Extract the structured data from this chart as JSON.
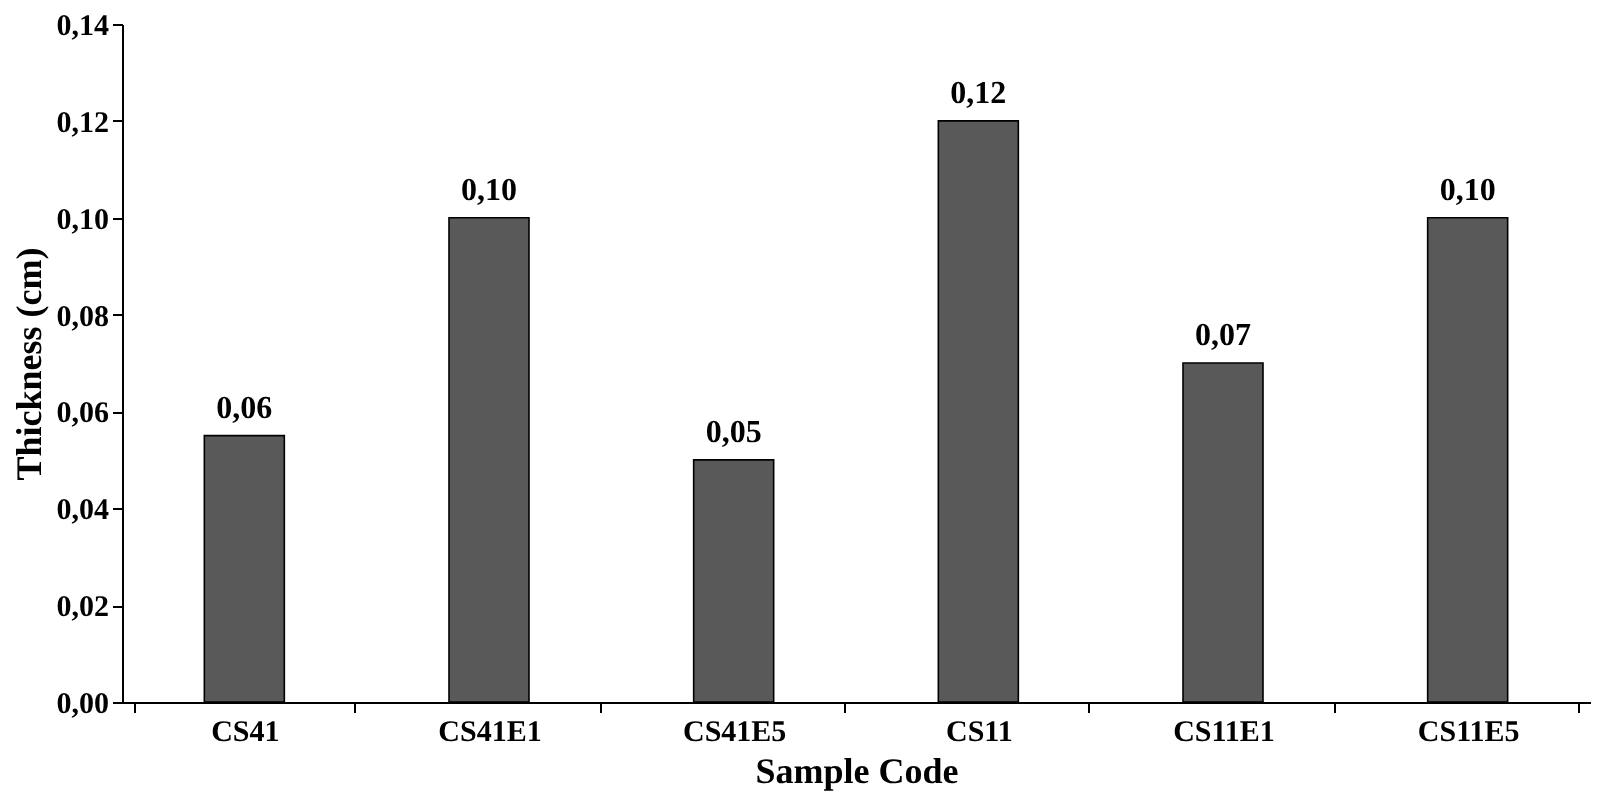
{
  "chart_data": {
    "type": "bar",
    "xlabel": "Sample Code",
    "ylabel": "Thickness (cm)",
    "categories": [
      "CS41",
      "CS41E1",
      "CS41E5",
      "CS11",
      "CS11E1",
      "CS11E5"
    ],
    "values": [
      0.055,
      0.1,
      0.05,
      0.12,
      0.07,
      0.1
    ],
    "value_labels": [
      "0,06",
      "0,10",
      "0,05",
      "0,12",
      "0,07",
      "0,10"
    ],
    "color": "#595959",
    "ylim": [
      0,
      0.14
    ],
    "yticks": [
      {
        "value": 0,
        "label": "0,00"
      },
      {
        "value": 0.02,
        "label": "0,02"
      },
      {
        "value": 0.04,
        "label": "0,04"
      },
      {
        "value": 0.06,
        "label": "0,06"
      },
      {
        "value": 0.08,
        "label": "0,08"
      },
      {
        "value": 0.1,
        "label": "0,10"
      },
      {
        "value": 0.12,
        "label": "0,12"
      },
      {
        "value": 0.14,
        "label": "0,14"
      }
    ],
    "grid": false
  }
}
